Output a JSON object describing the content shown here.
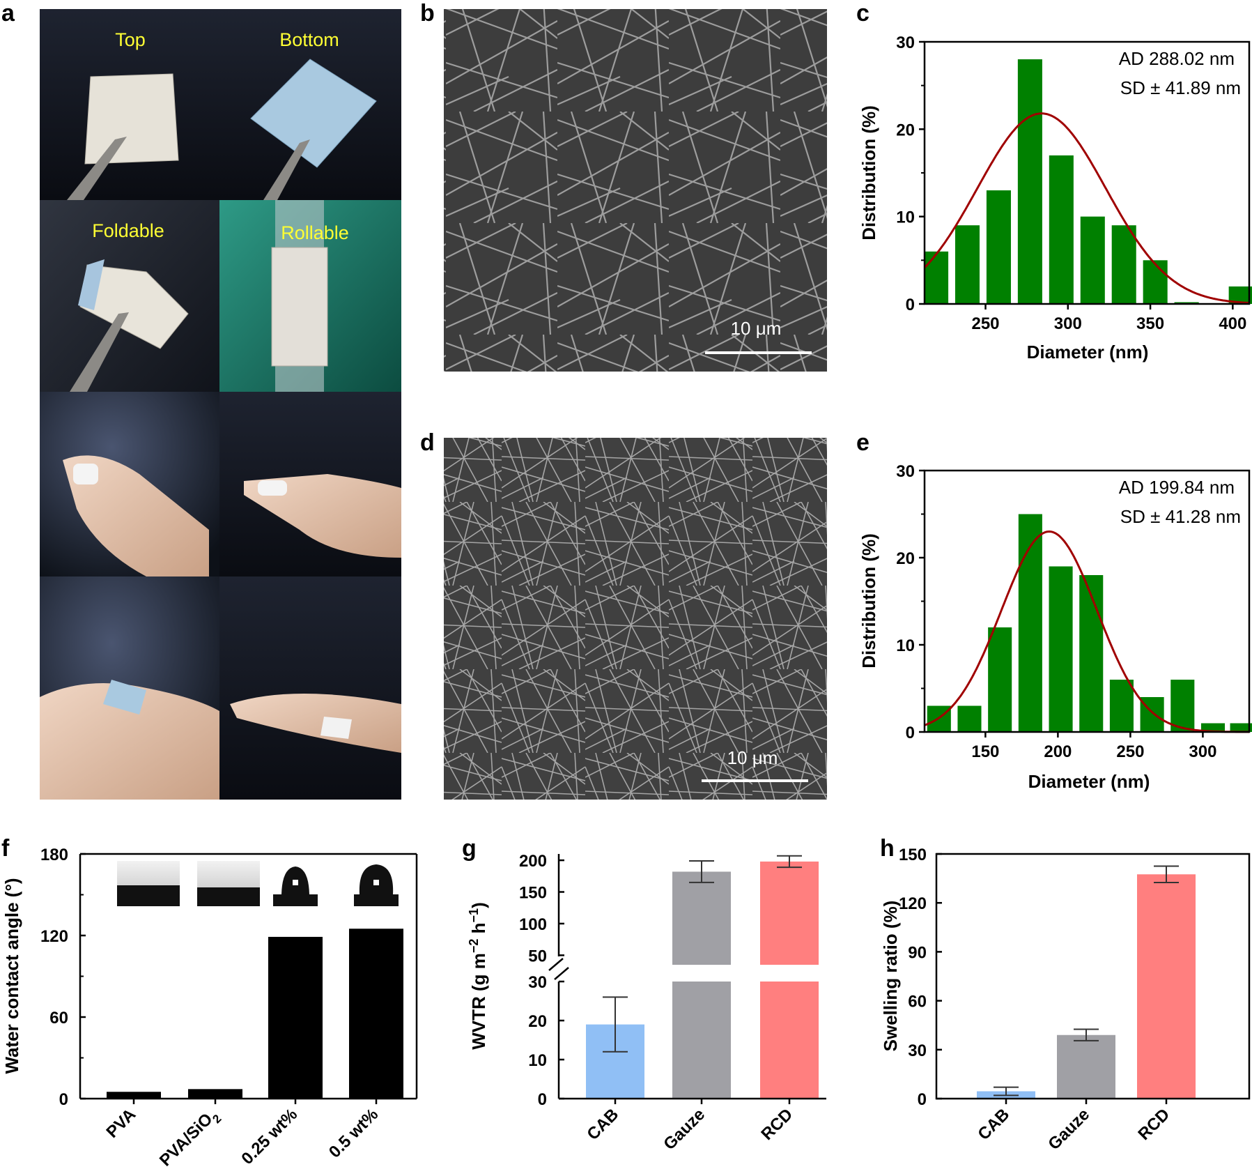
{
  "panel_labels": {
    "a": "a",
    "b": "b",
    "c": "c",
    "d": "d",
    "e": "e",
    "f": "f",
    "g": "g",
    "h": "h"
  },
  "panel_a": {
    "photo_labels": [
      "Top",
      "Bottom",
      "Foldable",
      "Rollable"
    ]
  },
  "panel_b": {
    "scale_bar": "10 μm"
  },
  "panel_d": {
    "scale_bar": "10 μm"
  },
  "colors": {
    "hist_bar": "#008000",
    "fit_curve": "#a00000",
    "f_bar": "#000000",
    "cab": "#90bff5",
    "gauze": "#a0a0a5",
    "rcd": "#ff7f7f"
  },
  "chart_data": [
    {
      "id": "c",
      "type": "bar",
      "subtype": "histogram-with-gaussian-fit",
      "xlabel": "Diameter (nm)",
      "ylabel": "Distribution (%)",
      "xlim": [
        213,
        410
      ],
      "ylim": [
        0,
        30
      ],
      "xticks": [
        250,
        300,
        350,
        400
      ],
      "yticks": [
        0,
        10,
        20,
        30
      ],
      "annotations": [
        "AD 288.02 nm",
        "SD ± 41.89 nm"
      ],
      "bin_centers": [
        220,
        239,
        258,
        277,
        296,
        315,
        334,
        353,
        372,
        391,
        405
      ],
      "values": [
        6,
        9,
        13,
        28,
        17,
        10,
        9,
        5,
        0.2,
        0,
        2
      ],
      "fit": {
        "mean": 284,
        "sigma": 39,
        "peak": 21.8
      }
    },
    {
      "id": "e",
      "type": "bar",
      "subtype": "histogram-with-gaussian-fit",
      "xlabel": "Diameter (nm)",
      "ylabel": "Distribution (%)",
      "xlim": [
        108,
        332
      ],
      "ylim": [
        0,
        30
      ],
      "xticks": [
        150,
        200,
        250,
        300
      ],
      "yticks": [
        0,
        10,
        20,
        30
      ],
      "annotations": [
        "AD 199.84 nm",
        "SD ± 41.28 nm"
      ],
      "bin_centers": [
        118,
        139,
        160,
        181,
        202,
        223,
        244,
        265,
        286,
        307,
        327
      ],
      "values": [
        3,
        3,
        12,
        25,
        19,
        18,
        6,
        4,
        6,
        1,
        1
      ],
      "fit": {
        "mean": 194,
        "sigma": 33,
        "peak": 23
      }
    },
    {
      "id": "f",
      "type": "bar",
      "ylabel": "Water contact angle (°)",
      "ylim": [
        0,
        180
      ],
      "yticks": [
        0,
        60,
        120,
        180
      ],
      "categories": [
        "PVA",
        "PVA/SiO",
        "0.25 wt%",
        "0.5 wt%"
      ],
      "category_subscript": [
        "",
        "2",
        "",
        ""
      ],
      "values": [
        5,
        7,
        119,
        125
      ]
    },
    {
      "id": "g",
      "type": "bar",
      "broken_axis": true,
      "ylabel": "WVTR (g m",
      "ylabel_sup1": "−2",
      "ylabel_mid": " h",
      "ylabel_sup2": "−1",
      "ylabel_end": ")",
      "lower_ylim": [
        0,
        30
      ],
      "upper_ylim": [
        35,
        210
      ],
      "lower_yticks": [
        0,
        10,
        20,
        30
      ],
      "upper_yticks": [
        50,
        100,
        150,
        200
      ],
      "categories": [
        "CAB",
        "Gauze",
        "RCD"
      ],
      "values": [
        19,
        182,
        198
      ],
      "errors": [
        7,
        17,
        9
      ]
    },
    {
      "id": "h",
      "type": "bar",
      "ylabel": "Swelling ratio (%)",
      "ylim": [
        0,
        150
      ],
      "yticks": [
        0,
        30,
        60,
        90,
        120,
        150
      ],
      "categories": [
        "CAB",
        "Gauze",
        "RCD"
      ],
      "values": [
        4.5,
        39,
        137.5
      ],
      "errors": [
        2.5,
        3.5,
        5
      ]
    }
  ]
}
